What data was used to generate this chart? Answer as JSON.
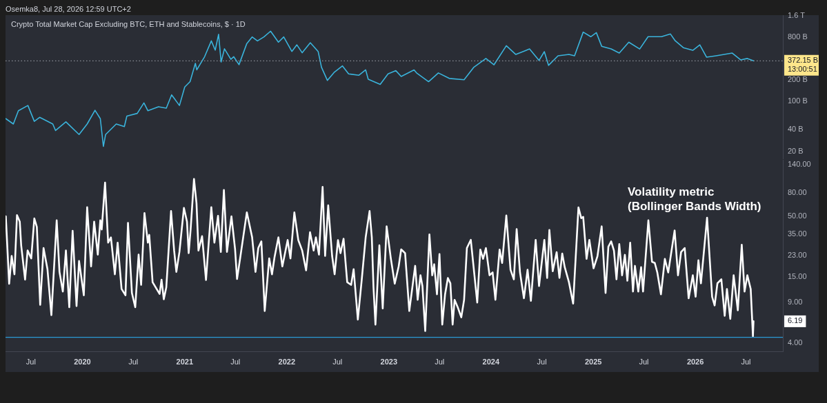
{
  "chart_data": [
    {
      "type": "line",
      "title": "Crypto Total Market Cap Excluding BTC, ETH and Stablecoins, $ · 1D",
      "annotations": [
        "Osemka8, Jul 28, 2026 12:59 UTC+2",
        "13:00:51"
      ],
      "x": [
        "2019-04-02",
        "2019-04-29",
        "2019-05-17",
        "2019-06-20",
        "2019-07-13",
        "2019-08-01",
        "2019-09-17",
        "2019-09-27",
        "2019-11-03",
        "2019-12-20",
        "2020-01-18",
        "2020-02-15",
        "2020-03-05",
        "2020-03-16",
        "2020-03-24",
        "2020-05-01",
        "2020-05-30",
        "2020-06-08",
        "2020-07-15",
        "2020-08-08",
        "2020-08-22",
        "2020-09-29",
        "2020-10-27",
        "2020-11-15",
        "2020-12-13",
        "2021-01-01",
        "2021-01-20",
        "2021-02-08",
        "2021-02-13",
        "2021-03-13",
        "2021-04-06",
        "2021-04-20",
        "2021-05-02",
        "2021-05-11",
        "2021-05-23",
        "2021-06-15",
        "2021-06-25",
        "2021-07-14",
        "2021-08-11",
        "2021-08-30",
        "2021-09-18",
        "2021-10-11",
        "2021-11-04",
        "2021-12-02",
        "2021-12-21",
        "2022-01-19",
        "2022-02-06",
        "2022-02-25",
        "2022-03-26",
        "2022-04-23",
        "2022-05-05",
        "2022-05-26",
        "2022-06-19",
        "2022-07-19",
        "2022-08-10",
        "2022-09-16",
        "2022-10-10",
        "2022-10-19",
        "2022-12-01",
        "2022-12-29",
        "2023-01-26",
        "2023-02-14",
        "2023-04-01",
        "2023-04-10",
        "2023-05-23",
        "2023-06-27",
        "2023-08-05",
        "2023-09-27",
        "2023-10-31",
        "2023-12-14",
        "2024-01-12",
        "2024-02-25",
        "2024-03-30",
        "2024-05-18",
        "2024-06-21",
        "2024-07-10",
        "2024-07-25",
        "2024-08-28",
        "2024-10-06",
        "2024-10-26",
        "2024-11-26",
        "2024-12-23",
        "2025-01-12",
        "2025-01-31",
        "2025-03-06",
        "2025-04-04",
        "2025-05-08",
        "2025-06-16",
        "2025-07-16",
        "2025-09-02",
        "2025-10-04",
        "2025-10-21",
        "2025-11-19",
        "2025-12-23",
        "2026-01-17",
        "2026-02-10",
        "2026-03-16",
        "2026-05-13",
        "2026-06-12",
        "2026-07-06",
        "2026-07-28"
      ],
      "values": [
        57400000000,
        48300000000,
        74200000000,
        87900000000,
        52700000000,
        59900000000,
        48300000000,
        39100000000,
        51800000000,
        34400000000,
        48300000000,
        75300000000,
        57400000000,
        23400000000,
        34400000000,
        48300000000,
        44400000000,
        62400000000,
        68000000000,
        95600000000,
        74200000000,
        84200000000,
        80700000000,
        124000000000,
        87900000000,
        160000000000,
        190000000000,
        344000000000,
        278000000000,
        426000000000,
        711000000000,
        527000000000,
        879000000000,
        359000000000,
        550000000000,
        391000000000,
        426000000000,
        329000000000,
        653000000000,
        807000000000,
        711000000000,
        807000000000,
        973000000000,
        681000000000,
        807000000000,
        505000000000,
        625000000000,
        484000000000,
        669000000000,
        505000000000,
        303000000000,
        198000000000,
        256000000000,
        316000000000,
        244000000000,
        234000000000,
        278000000000,
        206000000000,
        174000000000,
        244000000000,
        271000000000,
        225000000000,
        278000000000,
        252000000000,
        190000000000,
        252000000000,
        211000000000,
        202000000000,
        301000000000,
        402000000000,
        328000000000,
        608000000000,
        458000000000,
        547000000000,
        378000000000,
        501000000000,
        322000000000,
        439000000000,
        458000000000,
        439000000000,
        943000000000,
        813000000000,
        927000000000,
        597000000000,
        547000000000,
        479000000000,
        681000000000,
        547000000000,
        813000000000,
        813000000000,
        888000000000,
        713000000000,
        571000000000,
        524000000000,
        625000000000,
        420000000000,
        439000000000,
        479000000000,
        384000000000,
        402000000000,
        372150000000
      ],
      "color": "#3ab4dc",
      "xlim": [
        "2019-04-01",
        "2026-11-10"
      ],
      "ylim": [
        15500000000,
        1633000000000
      ],
      "yticks": [
        {
          "value": 20000000000,
          "label": "20 B"
        },
        {
          "value": 40000000000,
          "label": "40 B"
        },
        {
          "value": 100000000000,
          "label": "100 B"
        },
        {
          "value": 200000000000,
          "label": "200 B"
        },
        {
          "value": 800000000000,
          "label": "800 B"
        },
        {
          "value": 1600000000000,
          "label": "1.6 T"
        }
      ],
      "log": "y",
      "grid": false,
      "legend": false,
      "marker": "none",
      "tick_labels": "y",
      "ref_lines": [
        {
          "axis": "y",
          "value": 372150000000,
          "label": "372.15 B",
          "line_style": "dotted",
          "color": "#8a8d96"
        }
      ]
    },
    {
      "type": "line",
      "title": "Volatility metric",
      "subtitle": "(Bollinger Bands Width)",
      "annotations": [
        "6.19"
      ],
      "x": [
        "2019-04-02",
        "2019-04-14",
        "2019-04-23",
        "2019-05-03",
        "2019-05-12",
        "2019-05-22",
        "2019-05-27",
        "2019-06-10",
        "2019-06-19",
        "2019-07-02",
        "2019-07-13",
        "2019-07-22",
        "2019-08-03",
        "2019-08-15",
        "2019-08-29",
        "2019-09-12",
        "2019-10-01",
        "2019-10-11",
        "2019-10-23",
        "2019-11-03",
        "2019-11-15",
        "2019-11-27",
        "2019-12-11",
        "2019-12-20",
        "2020-01-06",
        "2020-01-18",
        "2020-02-01",
        "2020-02-12",
        "2020-02-25",
        "2020-03-05",
        "2020-03-10",
        "2020-03-22",
        "2020-04-02",
        "2020-04-12",
        "2020-04-26",
        "2020-05-06",
        "2020-05-20",
        "2020-06-03",
        "2020-06-12",
        "2020-06-26",
        "2020-07-08",
        "2020-07-20",
        "2020-07-29",
        "2020-08-10",
        "2020-08-22",
        "2020-08-27",
        "2020-09-08",
        "2020-10-03",
        "2020-10-10",
        "2020-10-18",
        "2020-10-27",
        "2020-11-13",
        "2020-11-24",
        "2020-12-02",
        "2020-12-13",
        "2020-12-29",
        "2021-01-09",
        "2021-01-15",
        "2021-01-22",
        "2021-02-03",
        "2021-02-12",
        "2021-02-19",
        "2021-03-04",
        "2021-03-18",
        "2021-04-06",
        "2021-04-17",
        "2021-04-30",
        "2021-05-10",
        "2021-05-21",
        "2021-06-01",
        "2021-06-17",
        "2021-06-30",
        "2021-07-07",
        "2021-07-18",
        "2021-08-11",
        "2021-08-30",
        "2021-09-11",
        "2021-09-21",
        "2021-10-02",
        "2021-10-14",
        "2021-10-30",
        "2021-11-09",
        "2021-11-18",
        "2021-12-02",
        "2021-12-16",
        "2022-01-04",
        "2022-01-14",
        "2022-01-28",
        "2022-02-11",
        "2022-02-25",
        "2022-03-11",
        "2022-03-25",
        "2022-04-07",
        "2022-04-15",
        "2022-04-26",
        "2022-05-09",
        "2022-05-18",
        "2022-05-29",
        "2022-06-12",
        "2022-06-21",
        "2022-07-03",
        "2022-07-12",
        "2022-07-23",
        "2022-08-05",
        "2022-08-19",
        "2022-08-28",
        "2022-09-12",
        "2022-09-26",
        "2022-10-10",
        "2022-10-24",
        "2022-11-01",
        "2022-11-07",
        "2022-11-14",
        "2022-11-28",
        "2022-12-10",
        "2022-12-24",
        "2023-01-08",
        "2023-01-22",
        "2023-02-05",
        "2023-02-14",
        "2023-02-28",
        "2023-03-15",
        "2023-04-05",
        "2023-04-14",
        "2023-04-24",
        "2023-05-01",
        "2023-05-11",
        "2023-05-26",
        "2023-06-05",
        "2023-06-12",
        "2023-06-22",
        "2023-07-01",
        "2023-07-11",
        "2023-07-21",
        "2023-07-31",
        "2023-08-09",
        "2023-08-17",
        "2023-08-24",
        "2023-09-05",
        "2023-09-17",
        "2023-09-27",
        "2023-10-07",
        "2023-10-21",
        "2023-11-13",
        "2023-11-24",
        "2023-12-04",
        "2023-12-14",
        "2023-12-27",
        "2024-01-07",
        "2024-01-17",
        "2024-02-01",
        "2024-02-10",
        "2024-02-25",
        "2024-03-11",
        "2024-03-23",
        "2024-04-02",
        "2024-04-14",
        "2024-04-28",
        "2024-05-11",
        "2024-05-23",
        "2024-06-09",
        "2024-06-21",
        "2024-07-10",
        "2024-07-20",
        "2024-07-28",
        "2024-08-09",
        "2024-08-23",
        "2024-09-02",
        "2024-09-12",
        "2024-09-21",
        "2024-10-06",
        "2024-10-21",
        "2024-11-09",
        "2024-11-19",
        "2024-11-26",
        "2024-12-08",
        "2024-12-18",
        "2025-01-02",
        "2025-01-16",
        "2025-01-31",
        "2025-02-14",
        "2025-02-24",
        "2025-03-06",
        "2025-03-16",
        "2025-03-25",
        "2025-04-04",
        "2025-04-14",
        "2025-04-24",
        "2025-05-03",
        "2025-05-13",
        "2025-05-23",
        "2025-05-30",
        "2025-06-11",
        "2025-06-21",
        "2025-06-28",
        "2025-07-17",
        "2025-07-30",
        "2025-08-09",
        "2025-08-18",
        "2025-08-31",
        "2025-09-14",
        "2025-09-26",
        "2025-10-19",
        "2025-10-31",
        "2025-11-11",
        "2025-11-24",
        "2025-12-08",
        "2025-12-23",
        "2026-01-02",
        "2026-01-12",
        "2026-01-21",
        "2026-02-12",
        "2026-03-02",
        "2026-03-11",
        "2026-03-21",
        "2026-04-04",
        "2026-04-16",
        "2026-04-24",
        "2026-05-06",
        "2026-05-18",
        "2026-06-02",
        "2026-06-16",
        "2026-06-26",
        "2026-07-06",
        "2026-07-18",
        "2026-07-26",
        "2026-07-28"
      ],
      "values": [
        50.2,
        13.1,
        22.8,
        15.8,
        51.5,
        45.2,
        28.2,
        14.2,
        25.4,
        21.7,
        48.1,
        40.7,
        8.6,
        26.7,
        17.5,
        7,
        46.4,
        16.6,
        11.2,
        25.4,
        8.2,
        37.6,
        8.4,
        20.6,
        10.4,
        60.3,
        18.5,
        45.2,
        23.4,
        46.4,
        38.6,
        98.4,
        29.7,
        33,
        15.8,
        29.7,
        11.8,
        10.4,
        44,
        10.9,
        8.2,
        23.4,
        12.8,
        53.5,
        29.7,
        34.7,
        13.5,
        10.7,
        14.2,
        9.6,
        12.2,
        55.8,
        25.4,
        16.6,
        24.7,
        59.4,
        45.2,
        24.1,
        38.6,
        105.9,
        65.3,
        25.4,
        33.8,
        14.1,
        60.3,
        29.7,
        50.7,
        24.7,
        84.9,
        24.7,
        50.2,
        26,
        14.4,
        21.7,
        54.3,
        33,
        16.6,
        26.7,
        30.5,
        7.6,
        21.7,
        15.8,
        22.2,
        33,
        18.5,
        31.3,
        21.7,
        54.3,
        31.3,
        25.4,
        17.1,
        36.6,
        25.4,
        33,
        23.4,
        90.4,
        22.8,
        62.6,
        22.8,
        15.8,
        31.3,
        24.1,
        32.1,
        13.5,
        12.8,
        17.5,
        6.4,
        14.2,
        33,
        55.8,
        33,
        12.2,
        5.8,
        28.2,
        8,
        41.1,
        21.7,
        13.1,
        18.5,
        26,
        24.1,
        7.6,
        18.7,
        9.5,
        15.5,
        12.5,
        5.1,
        35,
        15.5,
        19.3,
        10.6,
        23.7,
        5.8,
        10.6,
        14.7,
        13.2,
        5.8,
        9.5,
        8.1,
        6.7,
        9.5,
        26.7,
        31.4,
        9,
        25.9,
        21.5,
        26.7,
        15.5,
        16.4,
        9.5,
        25.9,
        19.8,
        51.1,
        17.3,
        14.3,
        38.9,
        16.4,
        9.8,
        17.3,
        9.3,
        31.4,
        12.5,
        31.4,
        14.7,
        38.3,
        16.8,
        24.6,
        14.7,
        23.9,
        18.2,
        13.5,
        8.8,
        60.1,
        48.4,
        49.7,
        21.5,
        31.4,
        17.8,
        22.7,
        41.1,
        10.9,
        27.4,
        30.5,
        25.3,
        14.3,
        28.9,
        15.5,
        23.3,
        13.9,
        29.7,
        11.2,
        18.7,
        11.2,
        18.2,
        11.2,
        46.4,
        20.3,
        19.8,
        16.4,
        10.6,
        21.5,
        16.4,
        37.9,
        15.5,
        24.6,
        26.7,
        9.8,
        15.5,
        10.1,
        20.9,
        13.2,
        48.9,
        10.1,
        8.5,
        13.2,
        14.3,
        6.9,
        11.8,
        6.5,
        15.5,
        7.7,
        28.5,
        11.2,
        15.5,
        11.8,
        4.6,
        6.19
      ],
      "color": "#ffffff",
      "xlim": [
        "2019-04-01",
        "2026-11-10"
      ],
      "xticks": [
        {
          "value": "2019-07-01",
          "label": "Jul"
        },
        {
          "value": "2020-01-01",
          "label": "2020"
        },
        {
          "value": "2020-07-01",
          "label": "Jul"
        },
        {
          "value": "2021-01-01",
          "label": "2021"
        },
        {
          "value": "2021-07-01",
          "label": "Jul"
        },
        {
          "value": "2022-01-01",
          "label": "2022"
        },
        {
          "value": "2022-07-01",
          "label": "Jul"
        },
        {
          "value": "2023-01-01",
          "label": "2023"
        },
        {
          "value": "2023-07-01",
          "label": "Jul"
        },
        {
          "value": "2024-01-01",
          "label": "2024"
        },
        {
          "value": "2024-07-01",
          "label": "Jul"
        },
        {
          "value": "2025-01-01",
          "label": "2025"
        },
        {
          "value": "2025-07-01",
          "label": "Jul"
        },
        {
          "value": "2026-01-01",
          "label": "2026"
        },
        {
          "value": "2026-07-01",
          "label": "Jul"
        }
      ],
      "ylim": [
        3.4,
        155
      ],
      "yticks": [
        {
          "value": 4,
          "label": "4.00"
        },
        {
          "value": 9,
          "label": "9.00"
        },
        {
          "value": 15,
          "label": "15.00"
        },
        {
          "value": 23,
          "label": "23.00"
        },
        {
          "value": 35,
          "label": "35.00"
        },
        {
          "value": 50,
          "label": "50.00"
        },
        {
          "value": 80,
          "label": "80.00"
        },
        {
          "value": 140,
          "label": "140.00"
        }
      ],
      "log": "y",
      "grid": false,
      "legend": false,
      "marker": "none",
      "ref_lines": [
        {
          "axis": "y",
          "value": 4.5,
          "color": "#2b9ad6"
        }
      ]
    }
  ]
}
